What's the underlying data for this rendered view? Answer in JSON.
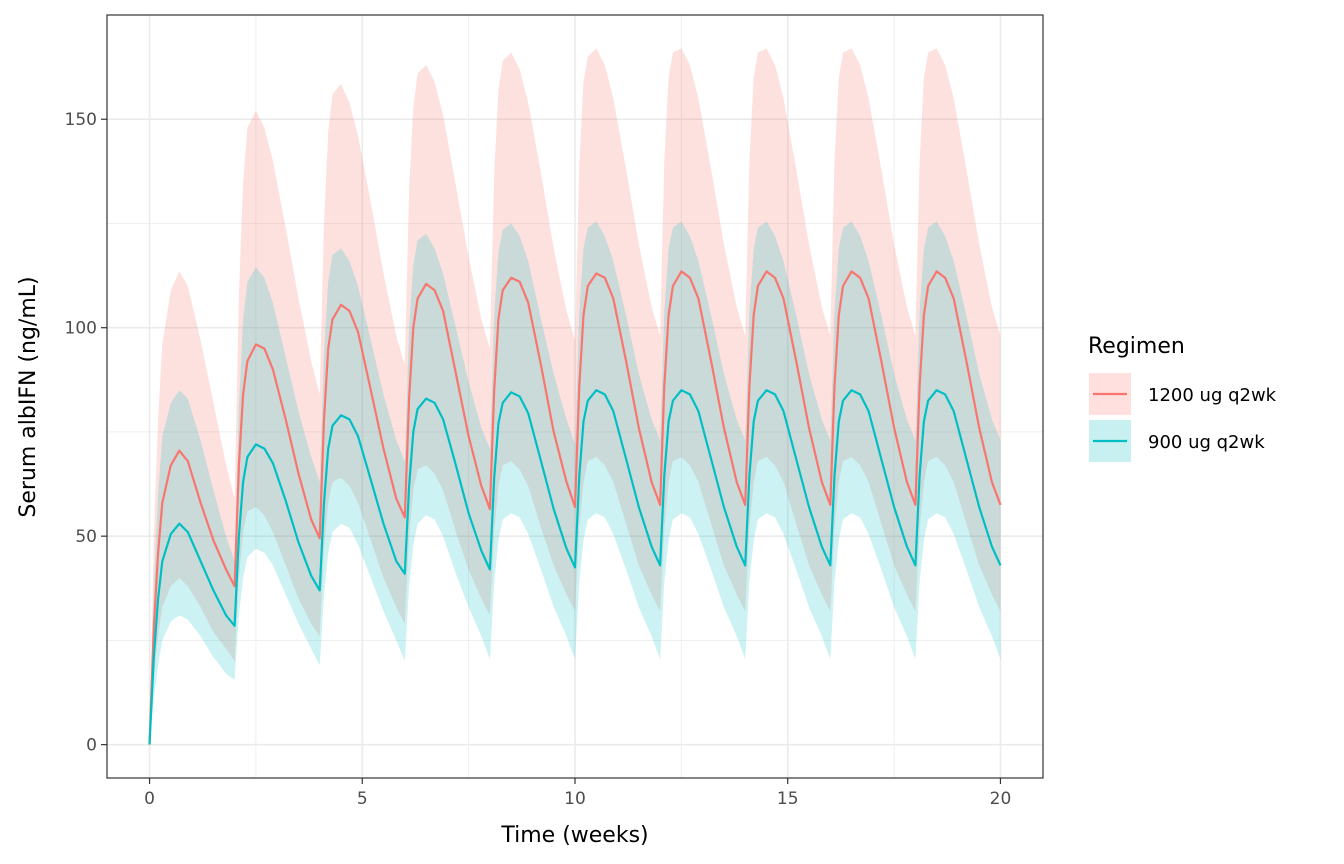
{
  "chart_data": {
    "type": "line",
    "title": "",
    "xlabel": "Time (weeks)",
    "ylabel": "Serum albIFN (ng/mL)",
    "xlim": [
      -1,
      21
    ],
    "ylim": [
      -8,
      175
    ],
    "x_ticks": [
      0,
      5,
      10,
      15,
      20
    ],
    "y_ticks": [
      0,
      50,
      100,
      150
    ],
    "x_tick_labels": [
      "0",
      "5",
      "10",
      "15",
      "20"
    ],
    "y_tick_labels": [
      "0",
      "50",
      "100",
      "150"
    ],
    "grid": true,
    "legend": {
      "title": "Regimen",
      "position": "right"
    },
    "dosing_interval_weeks": 2,
    "n_doses": 10,
    "series": [
      {
        "name": "1200 ug q2wk",
        "color": "#F8766D",
        "fill": "#FFE0DE",
        "x": [
          0,
          0.1,
          0.2,
          0.3,
          0.5,
          0.7,
          0.9,
          1.2,
          1.5,
          1.8,
          2.0
        ],
        "median_by_dose": [
          [
            0,
            28,
            46,
            58,
            67,
            70.5,
            68,
            58,
            49,
            42,
            38
          ],
          [
            38,
            67,
            84,
            92,
            96,
            95,
            90,
            78,
            65,
            54,
            49.5
          ],
          [
            49.5,
            78,
            95,
            102,
            105.5,
            104,
            99,
            85,
            71,
            59,
            54.5
          ],
          [
            54.5,
            83,
            100,
            107,
            110.5,
            109,
            104,
            89,
            74,
            62,
            56.5
          ],
          [
            56.5,
            85,
            102,
            109,
            112,
            111,
            106,
            91,
            75,
            63,
            57
          ],
          [
            57,
            86,
            103,
            110,
            113,
            112,
            107,
            92,
            76,
            63,
            57.5
          ],
          [
            57.5,
            86,
            103,
            110,
            113.5,
            112,
            107,
            92,
            76,
            63,
            57.5
          ],
          [
            57.5,
            86,
            103,
            110,
            113.5,
            112,
            107,
            92,
            76,
            63,
            57.5
          ],
          [
            57.5,
            86,
            103,
            110,
            113.5,
            112,
            107,
            92,
            76,
            63,
            57.5
          ],
          [
            57.5,
            86,
            103,
            110,
            113.5,
            112,
            107,
            92,
            76,
            63,
            57.5
          ]
        ],
        "upper_by_dose": [
          [
            0,
            50,
            78,
            96,
            109,
            113.5,
            110,
            97,
            82,
            67,
            59
          ],
          [
            59,
            108,
            135,
            148,
            152,
            148,
            140,
            124,
            107,
            92,
            84
          ],
          [
            84,
            125,
            147,
            156,
            158.5,
            154,
            146,
            130,
            113,
            98,
            91
          ],
          [
            91,
            133,
            153,
            161,
            163,
            159,
            151,
            134,
            117,
            102,
            95
          ],
          [
            95,
            137,
            157,
            164,
            166,
            162,
            154,
            137,
            119,
            104,
            97
          ],
          [
            97,
            139,
            159,
            165,
            167,
            163,
            155,
            138,
            120,
            105,
            98
          ],
          [
            98,
            140,
            160,
            166,
            167,
            163,
            155,
            138,
            120,
            105,
            98
          ],
          [
            98,
            140,
            160,
            166,
            167,
            163,
            155,
            138,
            120,
            105,
            98
          ],
          [
            98,
            140,
            160,
            166,
            167,
            163,
            155,
            138,
            120,
            105,
            98
          ],
          [
            98,
            140,
            160,
            166,
            167,
            163,
            155,
            138,
            120,
            105,
            98
          ]
        ],
        "lower_by_dose": [
          [
            0,
            16,
            26,
            33,
            38,
            40,
            38,
            33,
            27,
            23,
            20
          ],
          [
            20,
            40,
            51,
            56,
            57,
            55,
            51,
            43,
            35,
            29,
            26
          ],
          [
            26,
            47,
            58,
            63,
            64,
            62,
            58,
            49,
            40,
            33,
            29
          ],
          [
            29,
            50,
            61,
            66,
            67,
            65,
            61,
            51,
            42,
            35,
            31
          ],
          [
            31,
            51,
            62,
            67,
            68,
            66,
            62,
            52,
            43,
            36,
            32
          ],
          [
            32,
            52,
            63,
            68,
            69,
            67,
            63,
            53,
            43,
            36,
            32
          ],
          [
            32,
            52,
            63,
            68,
            69,
            67,
            63,
            53,
            43,
            36,
            32
          ],
          [
            32,
            52,
            63,
            68,
            69,
            67,
            63,
            53,
            43,
            36,
            32
          ],
          [
            32,
            52,
            63,
            68,
            69,
            67,
            63,
            53,
            43,
            36,
            32
          ],
          [
            32,
            52,
            63,
            68,
            69,
            67,
            63,
            53,
            43,
            36,
            32
          ]
        ]
      },
      {
        "name": "900 ug q2wk",
        "color": "#00BFC4",
        "fill": "#C9F0F1",
        "x": [
          0,
          0.1,
          0.2,
          0.3,
          0.5,
          0.7,
          0.9,
          1.2,
          1.5,
          1.8,
          2.0
        ],
        "median_by_dose": [
          [
            0,
            21,
            35,
            44,
            50.5,
            53,
            51,
            44,
            37,
            31,
            28.5
          ],
          [
            28.5,
            50,
            63,
            69,
            72,
            71,
            67.5,
            58.5,
            48.5,
            40.5,
            37
          ],
          [
            37,
            58,
            71,
            76.5,
            79,
            78,
            74,
            63.5,
            53,
            44,
            41
          ],
          [
            41,
            62,
            75,
            80.5,
            83,
            82,
            78,
            67,
            55.5,
            46.5,
            42
          ],
          [
            42,
            64,
            77,
            82,
            84.5,
            83.5,
            79.5,
            68,
            56.5,
            47,
            42.5
          ],
          [
            42.5,
            64.5,
            77.5,
            82.5,
            85,
            84,
            80,
            68.5,
            57,
            47.5,
            43
          ],
          [
            43,
            64.5,
            77.5,
            82.5,
            85,
            84,
            80,
            68.5,
            57,
            47.5,
            43
          ],
          [
            43,
            64.5,
            77.5,
            82.5,
            85,
            84,
            80,
            68.5,
            57,
            47.5,
            43
          ],
          [
            43,
            64.5,
            77.5,
            82.5,
            85,
            84,
            80,
            68.5,
            57,
            47.5,
            43
          ],
          [
            43,
            64.5,
            77.5,
            82.5,
            85,
            84,
            80,
            68.5,
            57,
            47.5,
            43
          ]
        ],
        "upper_by_dose": [
          [
            0,
            38,
            60,
            74,
            82,
            85,
            83,
            73,
            61,
            50,
            44
          ],
          [
            44,
            81,
            102,
            111,
            114.5,
            112,
            106,
            93,
            80,
            69,
            63
          ],
          [
            63,
            94,
            111,
            117.5,
            119,
            116,
            110,
            97,
            84,
            73,
            68
          ],
          [
            68,
            100,
            115,
            121,
            122.5,
            119,
            113,
            100,
            87,
            76,
            71
          ],
          [
            71,
            103,
            118,
            123.5,
            125,
            122,
            116,
            102,
            89,
            78,
            72
          ],
          [
            72,
            104,
            119,
            124,
            125.5,
            122,
            116,
            103,
            89,
            78,
            73
          ],
          [
            73,
            104,
            119,
            124,
            125.5,
            122,
            116,
            103,
            89,
            78,
            73
          ],
          [
            73,
            104,
            119,
            124,
            125.5,
            122,
            116,
            103,
            89,
            78,
            73
          ],
          [
            73,
            104,
            119,
            124,
            125.5,
            122,
            116,
            103,
            89,
            78,
            73
          ],
          [
            73,
            104,
            119,
            124,
            125.5,
            122,
            116,
            103,
            89,
            78,
            73
          ]
        ],
        "lower_by_dose": [
          [
            0,
            11,
            19,
            25,
            29.5,
            31,
            30,
            26,
            21,
            17,
            15.5
          ],
          [
            15.5,
            31,
            40,
            45,
            47,
            46,
            43,
            36,
            29,
            23,
            19
          ],
          [
            19,
            36,
            46,
            51,
            53,
            52,
            48,
            40,
            32,
            25,
            20
          ],
          [
            20,
            38,
            48,
            53,
            55,
            54,
            50,
            41,
            33,
            26,
            20.5
          ],
          [
            20.5,
            39,
            49,
            54,
            55.5,
            54.5,
            50.5,
            42,
            33,
            26,
            20.5
          ],
          [
            20.5,
            39,
            49,
            54,
            55.5,
            54.5,
            50.5,
            42,
            33,
            26,
            20.5
          ],
          [
            20.5,
            39,
            49,
            54,
            55.5,
            54.5,
            50.5,
            42,
            33,
            26,
            20.5
          ],
          [
            20.5,
            39,
            49,
            54,
            55.5,
            54.5,
            50.5,
            42,
            33,
            26,
            20.5
          ],
          [
            20.5,
            39,
            49,
            54,
            55.5,
            54.5,
            50.5,
            42,
            33,
            26,
            20.5
          ],
          [
            20.5,
            39,
            49,
            54,
            55.5,
            54.5,
            50.5,
            42,
            33,
            26,
            20.5
          ]
        ]
      }
    ]
  }
}
